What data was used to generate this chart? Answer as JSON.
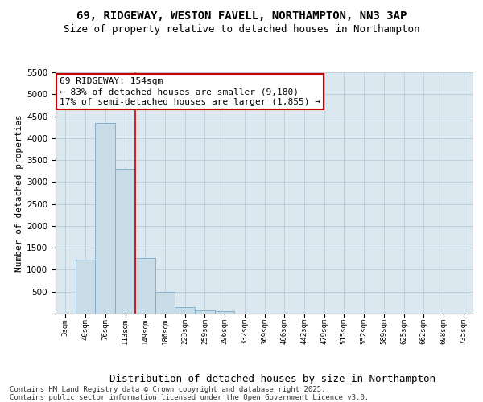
{
  "title1": "69, RIDGEWAY, WESTON FAVELL, NORTHAMPTON, NN3 3AP",
  "title2": "Size of property relative to detached houses in Northampton",
  "xlabel": "Distribution of detached houses by size in Northampton",
  "ylabel": "Number of detached properties",
  "bar_color": "#c8dce8",
  "bar_edge_color": "#7aaac8",
  "grid_color": "#b8ccd8",
  "bg_color": "#dce8f0",
  "categories": [
    "3sqm",
    "40sqm",
    "76sqm",
    "113sqm",
    "149sqm",
    "186sqm",
    "223sqm",
    "259sqm",
    "296sqm",
    "332sqm",
    "369sqm",
    "406sqm",
    "442sqm",
    "479sqm",
    "515sqm",
    "552sqm",
    "589sqm",
    "625sqm",
    "662sqm",
    "698sqm",
    "735sqm"
  ],
  "values": [
    0,
    1230,
    4350,
    3300,
    1270,
    500,
    150,
    70,
    50,
    0,
    0,
    0,
    0,
    0,
    0,
    0,
    0,
    0,
    0,
    0,
    0
  ],
  "vline_x": 3.5,
  "vline_color": "#cc0000",
  "ann_line1": "69 RIDGEWAY: 154sqm",
  "ann_line2": "← 83% of detached houses are smaller (9,180)",
  "ann_line3": "17% of semi-detached houses are larger (1,855) →",
  "ann_box_color": "#cc0000",
  "ylim": [
    0,
    5500
  ],
  "yticks": [
    0,
    500,
    1000,
    1500,
    2000,
    2500,
    3000,
    3500,
    4000,
    4500,
    5000,
    5500
  ],
  "footnote_line1": "Contains HM Land Registry data © Crown copyright and database right 2025.",
  "footnote_line2": "Contains public sector information licensed under the Open Government Licence v3.0.",
  "title1_fontsize": 10,
  "title2_fontsize": 9,
  "ylabel_fontsize": 8,
  "xlabel_fontsize": 9,
  "ytick_fontsize": 7.5,
  "xtick_fontsize": 6.5,
  "ann_fontsize": 8,
  "footnote_fontsize": 6.5
}
